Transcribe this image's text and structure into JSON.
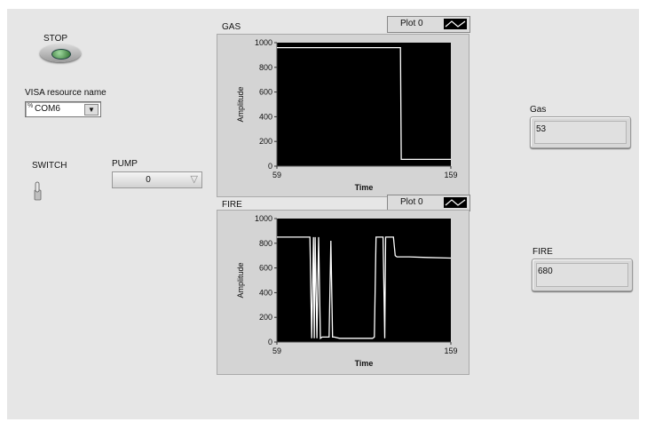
{
  "controls": {
    "stop_label": "STOP",
    "visa_label": "VISA resource name",
    "visa_prefix": "%",
    "visa_value": "COM6",
    "switch_label": "SWITCH",
    "pump_label": "PUMP",
    "pump_value": "0"
  },
  "indicators": {
    "gas_label": "Gas",
    "gas_value": "53",
    "fire_label": "FIRE",
    "fire_value": "680"
  },
  "graphs": {
    "gas": {
      "title": "GAS",
      "legend": "Plot 0"
    },
    "fire": {
      "title": "FIRE",
      "legend": "Plot 0"
    }
  },
  "chart_data": [
    {
      "type": "line",
      "title": "GAS",
      "xlabel": "Time",
      "ylabel": "Amplitude",
      "xlim": [
        59,
        159
      ],
      "ylim": [
        0,
        1000
      ],
      "yticks": [
        0,
        200,
        400,
        600,
        800,
        1000
      ],
      "xticks": [
        59,
        159
      ],
      "grid": false,
      "series": [
        {
          "name": "Plot 0",
          "color": "#ffffff",
          "x": [
            59,
            130,
            130.5,
            159
          ],
          "y": [
            960,
            960,
            55,
            55
          ]
        }
      ]
    },
    {
      "type": "line",
      "title": "FIRE",
      "xlabel": "Time",
      "ylabel": "Amplitude",
      "xlim": [
        59,
        159
      ],
      "ylim": [
        0,
        1000
      ],
      "yticks": [
        0,
        200,
        400,
        600,
        800,
        1000
      ],
      "xticks": [
        59,
        159
      ],
      "grid": false,
      "series": [
        {
          "name": "Plot 0",
          "color": "#ffffff",
          "x": [
            59,
            78,
            79,
            80,
            80.5,
            81,
            82,
            83,
            84,
            85,
            86,
            87,
            89,
            90,
            91,
            92,
            95,
            103,
            114,
            115,
            116,
            120,
            121,
            121.5,
            122,
            125,
            126,
            127,
            128,
            135,
            145,
            159
          ],
          "y": [
            850,
            850,
            30,
            850,
            30,
            850,
            30,
            850,
            30,
            40,
            40,
            40,
            40,
            820,
            40,
            40,
            30,
            30,
            30,
            40,
            850,
            850,
            30,
            850,
            850,
            850,
            850,
            700,
            690,
            690,
            685,
            680
          ]
        }
      ]
    }
  ]
}
